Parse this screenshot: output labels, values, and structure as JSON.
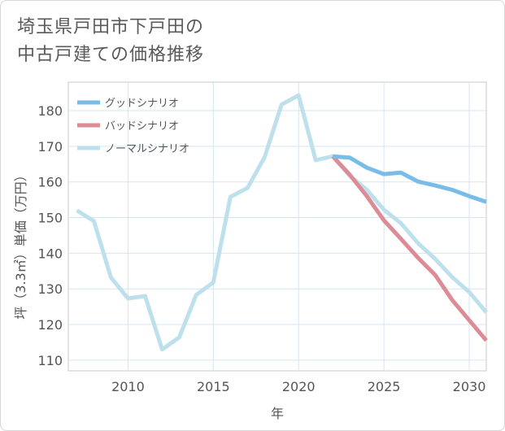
{
  "title_line1": "埼玉県戸田市下戸田の",
  "title_line2": "中古戸建ての価格推移",
  "chart_data": {
    "type": "line",
    "title": "埼玉県戸田市下戸田の中古戸建ての価格推移",
    "xlabel": "年",
    "ylabel": "坪（3.3㎡）単価（万円）",
    "xlim": [
      2006.5,
      2031
    ],
    "ylim": [
      107,
      188
    ],
    "xticks": [
      2010,
      2015,
      2020,
      2025,
      2030
    ],
    "yticks": [
      110,
      120,
      130,
      140,
      150,
      160,
      170,
      180
    ],
    "grid": true,
    "legend_position": "top-left",
    "series": [
      {
        "name": "グッドシナリオ",
        "color": "#78bdea",
        "x": [
          2022,
          2023,
          2024,
          2025,
          2026,
          2027,
          2028,
          2029,
          2030,
          2031
        ],
        "y": [
          167.2,
          166.8,
          164.0,
          162.2,
          162.6,
          160.1,
          159.0,
          157.8,
          156.0,
          154.4
        ]
      },
      {
        "name": "バッドシナリオ",
        "color": "#dc8c96",
        "x": [
          2022,
          2023,
          2024,
          2025,
          2026,
          2027,
          2028,
          2029,
          2030,
          2031
        ],
        "y": [
          167.2,
          162.0,
          156.0,
          149.2,
          144.0,
          138.7,
          133.9,
          126.9,
          121.2,
          115.5
        ]
      },
      {
        "name": "ノーマルシナリオ",
        "color": "#bde0ec",
        "x": [
          2007,
          2008,
          2009,
          2010,
          2011,
          2012,
          2013,
          2014,
          2015,
          2016,
          2017,
          2018,
          2019,
          2020,
          2021,
          2022,
          2023,
          2024,
          2025,
          2026,
          2027,
          2028,
          2029,
          2030,
          2031
        ],
        "y": [
          152.0,
          149.0,
          133.2,
          127.3,
          128.0,
          113.0,
          116.4,
          128.3,
          131.8,
          155.8,
          158.3,
          166.9,
          181.7,
          184.3,
          166.1,
          167.2,
          161.7,
          157.8,
          152.2,
          148.4,
          142.8,
          138.4,
          133.3,
          129.1,
          123.4
        ]
      }
    ]
  }
}
